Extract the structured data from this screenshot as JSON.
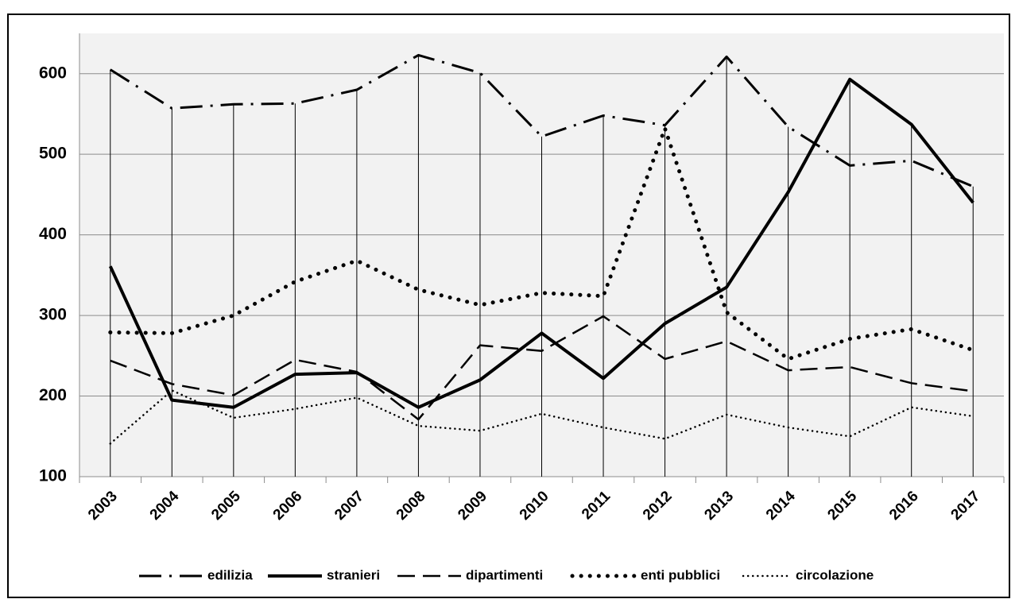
{
  "chart_data": {
    "type": "line",
    "categories": [
      "2003",
      "2004",
      "2005",
      "2006",
      "2007",
      "2008",
      "2009",
      "2010",
      "2011",
      "2012",
      "2013",
      "2014",
      "2015",
      "2016",
      "2017"
    ],
    "series": [
      {
        "name": "edilizia",
        "color": "#000000",
        "style": "dashdot",
        "values": [
          605,
          557,
          562,
          563,
          580,
          623,
          601,
          522,
          548,
          536,
          621,
          534,
          486,
          492,
          460
        ]
      },
      {
        "name": "stranieri",
        "color": "#000000",
        "style": "solid",
        "values": [
          361,
          195,
          186,
          227,
          229,
          186,
          220,
          278,
          222,
          290,
          335,
          453,
          593,
          537,
          440
        ]
      },
      {
        "name": "dipartimenti",
        "color": "#000000",
        "style": "dash",
        "values": [
          244,
          215,
          201,
          245,
          230,
          171,
          263,
          256,
          299,
          246,
          268,
          232,
          236,
          216,
          206
        ]
      },
      {
        "name": "enti pubblici",
        "color": "#000000",
        "style": "bigdot",
        "values": [
          279,
          278,
          300,
          342,
          368,
          332,
          313,
          328,
          324,
          532,
          304,
          246,
          271,
          283,
          257
        ]
      },
      {
        "name": "circolazione",
        "color": "#000000",
        "style": "smalldot",
        "values": [
          141,
          207,
          173,
          184,
          198,
          163,
          157,
          178,
          161,
          147,
          177,
          161,
          150,
          186,
          175
        ]
      }
    ],
    "ylim": [
      100,
      650
    ],
    "yticks": [
      100,
      200,
      300,
      400,
      500,
      600
    ],
    "grid": true,
    "drop_lines": true,
    "legend": "bottom"
  }
}
